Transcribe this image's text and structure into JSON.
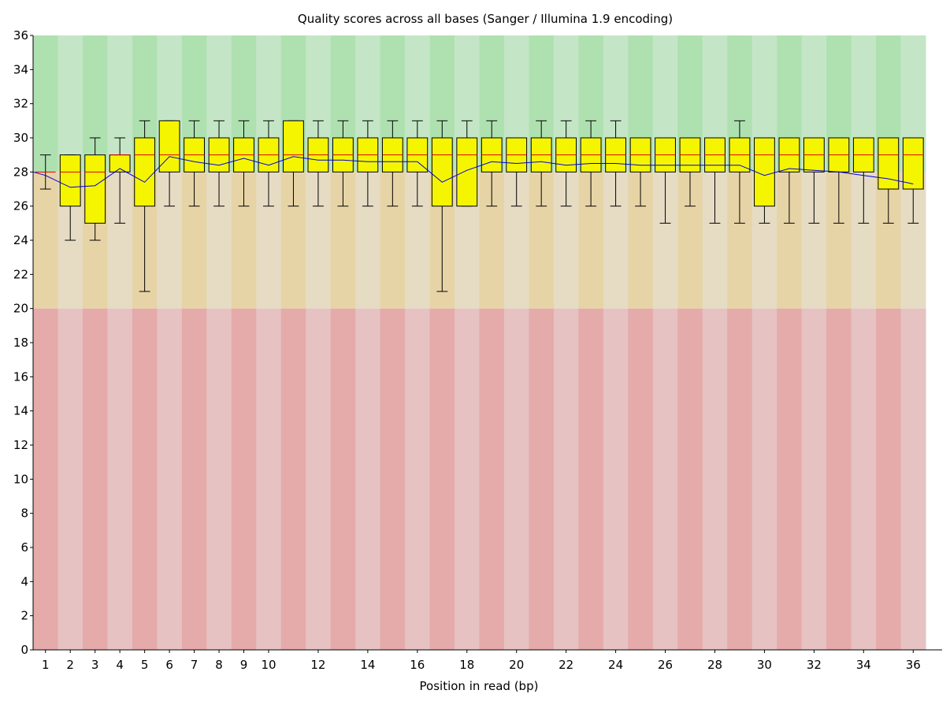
{
  "chart_data": {
    "type": "boxplot",
    "title": "Quality scores across all bases (Sanger / Illumina 1.9 encoding)",
    "xlabel": "Position in read (bp)",
    "ylabel": "",
    "ylim": [
      0,
      36
    ],
    "y_ticks": [
      0,
      2,
      4,
      6,
      8,
      10,
      12,
      14,
      16,
      18,
      20,
      22,
      24,
      26,
      28,
      30,
      32,
      34,
      36
    ],
    "x_tick_labels": [
      "1",
      "2",
      "3",
      "4",
      "5",
      "6",
      "7",
      "8",
      "9",
      "10",
      "12",
      "14",
      "16",
      "18",
      "20",
      "22",
      "24",
      "26",
      "28",
      "30",
      "32",
      "34",
      "36"
    ],
    "zones": [
      {
        "name": "good",
        "from": 28,
        "to": 36,
        "color_dark": "#afe1b0",
        "color_light": "#c4e6c6"
      },
      {
        "name": "reasonable",
        "from": 20,
        "to": 28,
        "color_dark": "#e7d4a6",
        "color_light": "#e6dcc4"
      },
      {
        "name": "poor",
        "from": 0,
        "to": 20,
        "color_dark": "#e5aaaa",
        "color_light": "#e6c2c2"
      }
    ],
    "box_color": "#f5f500",
    "median_color": "#e00000",
    "mean_color": "#0000e0",
    "positions": [
      {
        "label": "1",
        "whisker_low": 27,
        "q1": 28,
        "median": 28,
        "q3": 28,
        "whisker_high": 29,
        "mean": 27.8
      },
      {
        "label": "2",
        "whisker_low": 24,
        "q1": 26,
        "median": 28,
        "q3": 29,
        "whisker_high": 29,
        "mean": 27.1
      },
      {
        "label": "3",
        "whisker_low": 24,
        "q1": 25,
        "median": 28,
        "q3": 29,
        "whisker_high": 30,
        "mean": 27.2
      },
      {
        "label": "4",
        "whisker_low": 25,
        "q1": 28,
        "median": 29,
        "q3": 29,
        "whisker_high": 30,
        "mean": 28.2
      },
      {
        "label": "5",
        "whisker_low": 21,
        "q1": 26,
        "median": 29,
        "q3": 30,
        "whisker_high": 31,
        "mean": 27.4
      },
      {
        "label": "6",
        "whisker_low": 26,
        "q1": 28,
        "median": 29,
        "q3": 31,
        "whisker_high": 31,
        "mean": 28.9
      },
      {
        "label": "7",
        "whisker_low": 26,
        "q1": 28,
        "median": 29,
        "q3": 30,
        "whisker_high": 31,
        "mean": 28.6
      },
      {
        "label": "8",
        "whisker_low": 26,
        "q1": 28,
        "median": 29,
        "q3": 30,
        "whisker_high": 31,
        "mean": 28.4
      },
      {
        "label": "9",
        "whisker_low": 26,
        "q1": 28,
        "median": 29,
        "q3": 30,
        "whisker_high": 31,
        "mean": 28.8
      },
      {
        "label": "10",
        "whisker_low": 26,
        "q1": 28,
        "median": 29,
        "q3": 30,
        "whisker_high": 31,
        "mean": 28.4
      },
      {
        "label": "11",
        "whisker_low": 26,
        "q1": 28,
        "median": 29,
        "q3": 31,
        "whisker_high": 31,
        "mean": 28.9
      },
      {
        "label": "12",
        "whisker_low": 26,
        "q1": 28,
        "median": 29,
        "q3": 30,
        "whisker_high": 31,
        "mean": 28.7
      },
      {
        "label": "13",
        "whisker_low": 26,
        "q1": 28,
        "median": 29,
        "q3": 30,
        "whisker_high": 31,
        "mean": 28.7
      },
      {
        "label": "14",
        "whisker_low": 26,
        "q1": 28,
        "median": 29,
        "q3": 30,
        "whisker_high": 31,
        "mean": 28.6
      },
      {
        "label": "15",
        "whisker_low": 26,
        "q1": 28,
        "median": 29,
        "q3": 30,
        "whisker_high": 31,
        "mean": 28.6
      },
      {
        "label": "16",
        "whisker_low": 26,
        "q1": 28,
        "median": 29,
        "q3": 30,
        "whisker_high": 31,
        "mean": 28.6
      },
      {
        "label": "17",
        "whisker_low": 21,
        "q1": 26,
        "median": 29,
        "q3": 30,
        "whisker_high": 31,
        "mean": 27.4
      },
      {
        "label": "18",
        "whisker_low": 26,
        "q1": 26,
        "median": 29,
        "q3": 30,
        "whisker_high": 31,
        "mean": 28.1
      },
      {
        "label": "19",
        "whisker_low": 26,
        "q1": 28,
        "median": 29,
        "q3": 30,
        "whisker_high": 31,
        "mean": 28.6
      },
      {
        "label": "20",
        "whisker_low": 26,
        "q1": 28,
        "median": 29,
        "q3": 30,
        "whisker_high": 30,
        "mean": 28.5
      },
      {
        "label": "21",
        "whisker_low": 26,
        "q1": 28,
        "median": 29,
        "q3": 30,
        "whisker_high": 31,
        "mean": 28.6
      },
      {
        "label": "22",
        "whisker_low": 26,
        "q1": 28,
        "median": 29,
        "q3": 30,
        "whisker_high": 31,
        "mean": 28.4
      },
      {
        "label": "23",
        "whisker_low": 26,
        "q1": 28,
        "median": 29,
        "q3": 30,
        "whisker_high": 31,
        "mean": 28.5
      },
      {
        "label": "24",
        "whisker_low": 26,
        "q1": 28,
        "median": 29,
        "q3": 30,
        "whisker_high": 31,
        "mean": 28.5
      },
      {
        "label": "25",
        "whisker_low": 26,
        "q1": 28,
        "median": 29,
        "q3": 30,
        "whisker_high": 30,
        "mean": 28.4
      },
      {
        "label": "26",
        "whisker_low": 25,
        "q1": 28,
        "median": 29,
        "q3": 30,
        "whisker_high": 30,
        "mean": 28.4
      },
      {
        "label": "27",
        "whisker_low": 26,
        "q1": 28,
        "median": 29,
        "q3": 30,
        "whisker_high": 30,
        "mean": 28.4
      },
      {
        "label": "28",
        "whisker_low": 25,
        "q1": 28,
        "median": 29,
        "q3": 30,
        "whisker_high": 30,
        "mean": 28.4
      },
      {
        "label": "29",
        "whisker_low": 25,
        "q1": 28,
        "median": 29,
        "q3": 30,
        "whisker_high": 31,
        "mean": 28.4
      },
      {
        "label": "30",
        "whisker_low": 25,
        "q1": 26,
        "median": 29,
        "q3": 30,
        "whisker_high": 30,
        "mean": 27.8
      },
      {
        "label": "31",
        "whisker_low": 25,
        "q1": 28,
        "median": 29,
        "q3": 30,
        "whisker_high": 30,
        "mean": 28.2
      },
      {
        "label": "32",
        "whisker_low": 25,
        "q1": 28,
        "median": 29,
        "q3": 30,
        "whisker_high": 30,
        "mean": 28.1
      },
      {
        "label": "33",
        "whisker_low": 25,
        "q1": 28,
        "median": 29,
        "q3": 30,
        "whisker_high": 30,
        "mean": 28.0
      },
      {
        "label": "34",
        "whisker_low": 25,
        "q1": 28,
        "median": 29,
        "q3": 30,
        "whisker_high": 30,
        "mean": 27.8
      },
      {
        "label": "35",
        "whisker_low": 25,
        "q1": 27,
        "median": 29,
        "q3": 30,
        "whisker_high": 30,
        "mean": 27.6
      },
      {
        "label": "36",
        "whisker_low": 25,
        "q1": 27,
        "median": 29,
        "q3": 30,
        "whisker_high": 30,
        "mean": 27.3
      }
    ]
  }
}
